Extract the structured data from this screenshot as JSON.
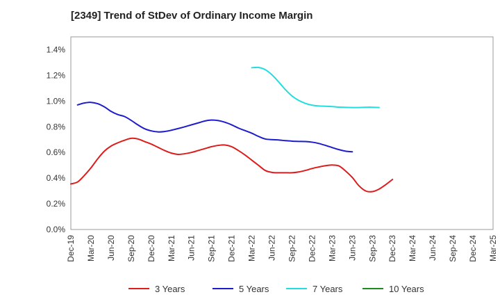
{
  "chart_data": {
    "type": "line",
    "title": "[2349]  Trend of StDev of Ordinary Income Margin",
    "xlabel": "",
    "ylabel": "",
    "x_tick_labels": [
      "Dec-19",
      "Mar-20",
      "Jun-20",
      "Sep-20",
      "Dec-20",
      "Mar-21",
      "Jun-21",
      "Sep-21",
      "Dec-21",
      "Mar-22",
      "Jun-22",
      "Sep-22",
      "Dec-22",
      "Mar-23",
      "Jun-23",
      "Sep-23",
      "Dec-23",
      "Mar-24",
      "Jun-24",
      "Sep-24",
      "Dec-24",
      "Mar-25"
    ],
    "y_tick_labels": [
      "0.0%",
      "0.2%",
      "0.4%",
      "0.6%",
      "0.8%",
      "1.0%",
      "1.2%",
      "1.4%"
    ],
    "ylim": [
      0,
      1.4
    ],
    "grid": true,
    "legend_position": "bottom",
    "series": [
      {
        "name": "3 Years",
        "color": "#dd1c1c",
        "start_index": 0,
        "values": [
          0.355,
          0.37,
          0.42,
          0.48,
          0.55,
          0.61,
          0.65,
          0.675,
          0.695,
          0.71,
          0.705,
          0.685,
          0.665,
          0.64,
          0.615,
          0.595,
          0.585,
          0.59,
          0.6,
          0.615,
          0.63,
          0.645,
          0.655,
          0.658,
          0.645,
          0.615,
          0.58,
          0.54,
          0.5,
          0.46,
          0.445,
          0.442,
          0.442,
          0.442,
          0.448,
          0.46,
          0.475,
          0.487,
          0.497,
          0.502,
          0.495,
          0.455,
          0.405,
          0.34,
          0.3,
          0.295,
          0.315,
          0.35,
          0.39
        ]
      },
      {
        "name": "5 Years",
        "color": "#1c1ccc",
        "start_index": 1,
        "values": [
          0.97,
          0.985,
          0.99,
          0.98,
          0.955,
          0.92,
          0.895,
          0.88,
          0.85,
          0.815,
          0.785,
          0.768,
          0.76,
          0.763,
          0.773,
          0.786,
          0.8,
          0.815,
          0.83,
          0.845,
          0.852,
          0.848,
          0.835,
          0.815,
          0.79,
          0.77,
          0.75,
          0.725,
          0.705,
          0.7,
          0.697,
          0.692,
          0.688,
          0.686,
          0.685,
          0.68,
          0.67,
          0.655,
          0.638,
          0.622,
          0.61,
          0.605
        ]
      },
      {
        "name": "7 Years",
        "color": "#22dddd",
        "start_index": 27,
        "values": [
          1.26,
          1.262,
          1.245,
          1.205,
          1.15,
          1.09,
          1.04,
          1.005,
          0.982,
          0.968,
          0.962,
          0.96,
          0.957,
          0.953,
          0.951,
          0.95,
          0.95,
          0.952,
          0.952,
          0.95
        ]
      },
      {
        "name": "10 Years",
        "color": "#1c8a1c",
        "start_index": 0,
        "values": []
      }
    ]
  }
}
